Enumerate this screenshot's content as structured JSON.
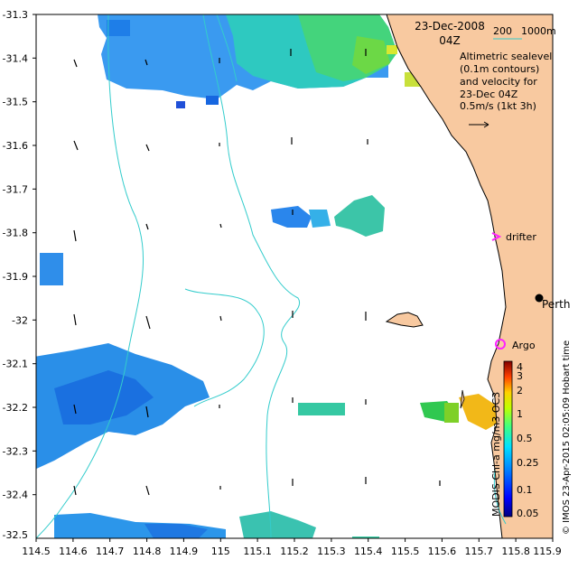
{
  "map": {
    "date": "23-Dec-2008",
    "time": "04Z",
    "depth_labels": [
      "200",
      "1000m"
    ],
    "legend_lines": [
      "Altimetric sealevel",
      "(0.1m contours)",
      "and velocity for",
      "23-Dec 04Z",
      "0.5m/s (1kt 3h)"
    ],
    "drifter_label": "drifter",
    "argo_label": "Argo",
    "city_label": "Perth",
    "credit": "© IMOS 23-Apr-2015 02:05:09 Hobart time",
    "colorbar_title": "MODIS Chl-a mg/m3 OC3",
    "colors": {
      "land": "#f8c9a0",
      "isobath": "#33cccc",
      "drifter": "#ff22ff",
      "argo": "#ff22ff"
    },
    "colorbar_ticks": [
      "0.05",
      "0.1",
      "0.25",
      "0.5",
      "1",
      "2",
      "3",
      "4"
    ],
    "x_ticks": [
      "114.5",
      "114.6",
      "114.7",
      "114.8",
      "114.9",
      "115",
      "115.1",
      "115.2",
      "115.3",
      "115.4",
      "115.5",
      "115.6",
      "115.7",
      "115.8",
      "115.9"
    ],
    "y_ticks": [
      "-31.3",
      "-31.4",
      "-31.5",
      "-31.6",
      "-31.7",
      "-31.8",
      "-31.9",
      "-32",
      "-32.1",
      "-32.2",
      "-32.3",
      "-32.4",
      "-32.5"
    ]
  }
}
